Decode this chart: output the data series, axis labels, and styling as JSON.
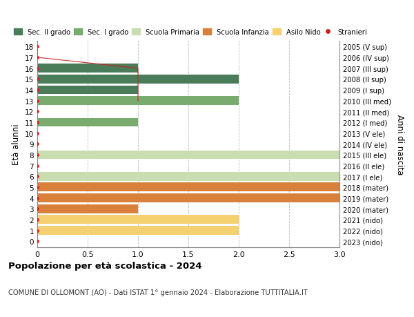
{
  "ages": [
    18,
    17,
    16,
    15,
    14,
    13,
    12,
    11,
    10,
    9,
    8,
    7,
    6,
    5,
    4,
    3,
    2,
    1,
    0
  ],
  "right_labels": [
    "2005 (V sup)",
    "2006 (IV sup)",
    "2007 (III sup)",
    "2008 (II sup)",
    "2009 (I sup)",
    "2010 (III med)",
    "2011 (II med)",
    "2012 (I med)",
    "2013 (V ele)",
    "2014 (IV ele)",
    "2015 (III ele)",
    "2016 (II ele)",
    "2017 (I ele)",
    "2018 (mater)",
    "2019 (mater)",
    "2020 (mater)",
    "2021 (nido)",
    "2022 (nido)",
    "2023 (nido)"
  ],
  "bar_values": [
    0,
    0,
    1,
    2,
    1,
    2,
    0,
    1,
    0,
    0,
    3,
    0,
    3,
    3,
    3,
    1,
    2,
    2,
    0
  ],
  "bar_colors": [
    "#4a7c59",
    "#4a7c59",
    "#4a7c59",
    "#4a7c59",
    "#4a7c59",
    "#7aab6e",
    "#7aab6e",
    "#7aab6e",
    "#c8ddb0",
    "#c8ddb0",
    "#c8ddb0",
    "#c8ddb0",
    "#c8ddb0",
    "#d9813a",
    "#d9813a",
    "#d9813a",
    "#f5d070",
    "#f5d070",
    "#f5d070"
  ],
  "legend_colors": [
    "#4a7c59",
    "#7aab6e",
    "#c8ddb0",
    "#d9813a",
    "#f5d070",
    "#cc2222"
  ],
  "legend_labels": [
    "Sec. II grado",
    "Sec. I grado",
    "Scuola Primaria",
    "Scuola Infanzia",
    "Asilo Nido",
    "Stranieri"
  ],
  "title": "Popolazione per età scolastica - 2024",
  "subtitle": "COMUNE DI OLLOMONT (AO) - Dati ISTAT 1° gennaio 2024 - Elaborazione TUTTITALIA.IT",
  "ylabel_left": "Età alunni",
  "ylabel_right": "Anni di nascita",
  "xlim": [
    0,
    3.0
  ],
  "ylim_min": -0.55,
  "ylim_max": 18.55,
  "bg_color": "#ffffff",
  "grid_color": "#bbbbbb",
  "bar_height": 0.82,
  "bar_alpha": 1.0,
  "stranieri_line_ages": [
    18,
    17,
    16,
    15,
    14,
    13
  ],
  "stranieri_line_x": [
    0,
    0,
    1,
    1,
    1,
    1
  ],
  "stranieri_dot_color": "#cc2222",
  "stranieri_line_color": "#cc2222"
}
